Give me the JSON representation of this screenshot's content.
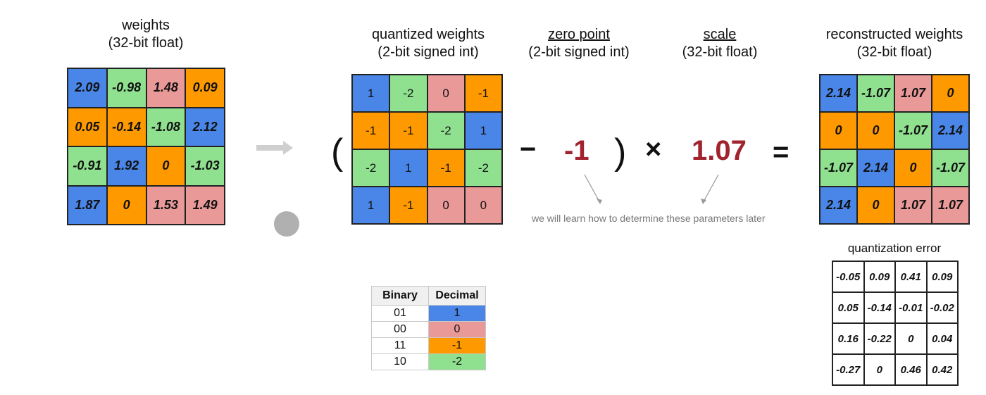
{
  "colors": {
    "blue": "#4a86e8",
    "green": "#8fe08f",
    "pink": "#ea9999",
    "orange": "#ff9900",
    "accent_red": "#a0232e",
    "note_gray": "#777777"
  },
  "weights": {
    "title": "weights",
    "subtitle": "(32-bit float)",
    "cells": [
      {
        "v": "2.09",
        "c": "blue"
      },
      {
        "v": "-0.98",
        "c": "green"
      },
      {
        "v": "1.48",
        "c": "pink"
      },
      {
        "v": "0.09",
        "c": "orange"
      },
      {
        "v": "0.05",
        "c": "orange"
      },
      {
        "v": "-0.14",
        "c": "orange"
      },
      {
        "v": "-1.08",
        "c": "green"
      },
      {
        "v": "2.12",
        "c": "blue"
      },
      {
        "v": "-0.91",
        "c": "green"
      },
      {
        "v": "1.92",
        "c": "blue"
      },
      {
        "v": "0",
        "c": "orange"
      },
      {
        "v": "-1.03",
        "c": "green"
      },
      {
        "v": "1.87",
        "c": "blue"
      },
      {
        "v": "0",
        "c": "orange"
      },
      {
        "v": "1.53",
        "c": "pink"
      },
      {
        "v": "1.49",
        "c": "pink"
      }
    ]
  },
  "quantized": {
    "title": "quantized weights",
    "subtitle": "(2-bit signed int)",
    "cells": [
      {
        "v": "1",
        "c": "blue"
      },
      {
        "v": "-2",
        "c": "green"
      },
      {
        "v": "0",
        "c": "pink"
      },
      {
        "v": "-1",
        "c": "orange"
      },
      {
        "v": "-1",
        "c": "orange"
      },
      {
        "v": "-1",
        "c": "orange"
      },
      {
        "v": "-2",
        "c": "green"
      },
      {
        "v": "1",
        "c": "blue"
      },
      {
        "v": "-2",
        "c": "green"
      },
      {
        "v": "1",
        "c": "blue"
      },
      {
        "v": "-1",
        "c": "orange"
      },
      {
        "v": "-2",
        "c": "green"
      },
      {
        "v": "1",
        "c": "blue"
      },
      {
        "v": "-1",
        "c": "orange"
      },
      {
        "v": "0",
        "c": "pink"
      },
      {
        "v": "0",
        "c": "pink"
      }
    ]
  },
  "zero_point": {
    "title": "zero point",
    "subtitle": "(2-bit signed int)",
    "value": "-1"
  },
  "scale": {
    "title": "scale",
    "subtitle": "(32-bit float)",
    "value": "1.07"
  },
  "operators": {
    "open": "(",
    "minus": "−",
    "close": ")",
    "times": "×",
    "equals": "="
  },
  "note": "we will learn how to determine these parameters later",
  "reconstructed": {
    "title": "reconstructed weights",
    "subtitle": "(32-bit float)",
    "cells": [
      {
        "v": "2.14",
        "c": "blue"
      },
      {
        "v": "-1.07",
        "c": "green"
      },
      {
        "v": "1.07",
        "c": "pink"
      },
      {
        "v": "0",
        "c": "orange"
      },
      {
        "v": "0",
        "c": "orange"
      },
      {
        "v": "0",
        "c": "orange"
      },
      {
        "v": "-1.07",
        "c": "green"
      },
      {
        "v": "2.14",
        "c": "blue"
      },
      {
        "v": "-1.07",
        "c": "green"
      },
      {
        "v": "2.14",
        "c": "blue"
      },
      {
        "v": "0",
        "c": "orange"
      },
      {
        "v": "-1.07",
        "c": "green"
      },
      {
        "v": "2.14",
        "c": "blue"
      },
      {
        "v": "0",
        "c": "orange"
      },
      {
        "v": "1.07",
        "c": "pink"
      },
      {
        "v": "1.07",
        "c": "pink"
      }
    ]
  },
  "error": {
    "title": "quantization error",
    "cells": [
      "-0.05",
      "0.09",
      "0.41",
      "0.09",
      "0.05",
      "-0.14",
      "-0.01",
      "-0.02",
      "0.16",
      "-0.22",
      "0",
      "0.04",
      "-0.27",
      "0",
      "0.46",
      "0.42"
    ]
  },
  "legend": {
    "headers": [
      "Binary",
      "Decimal"
    ],
    "rows": [
      {
        "binary": "01",
        "decimal": "1",
        "c": "blue"
      },
      {
        "binary": "00",
        "decimal": "0",
        "c": "pink"
      },
      {
        "binary": "11",
        "decimal": "-1",
        "c": "orange"
      },
      {
        "binary": "10",
        "decimal": "-2",
        "c": "green"
      }
    ]
  }
}
